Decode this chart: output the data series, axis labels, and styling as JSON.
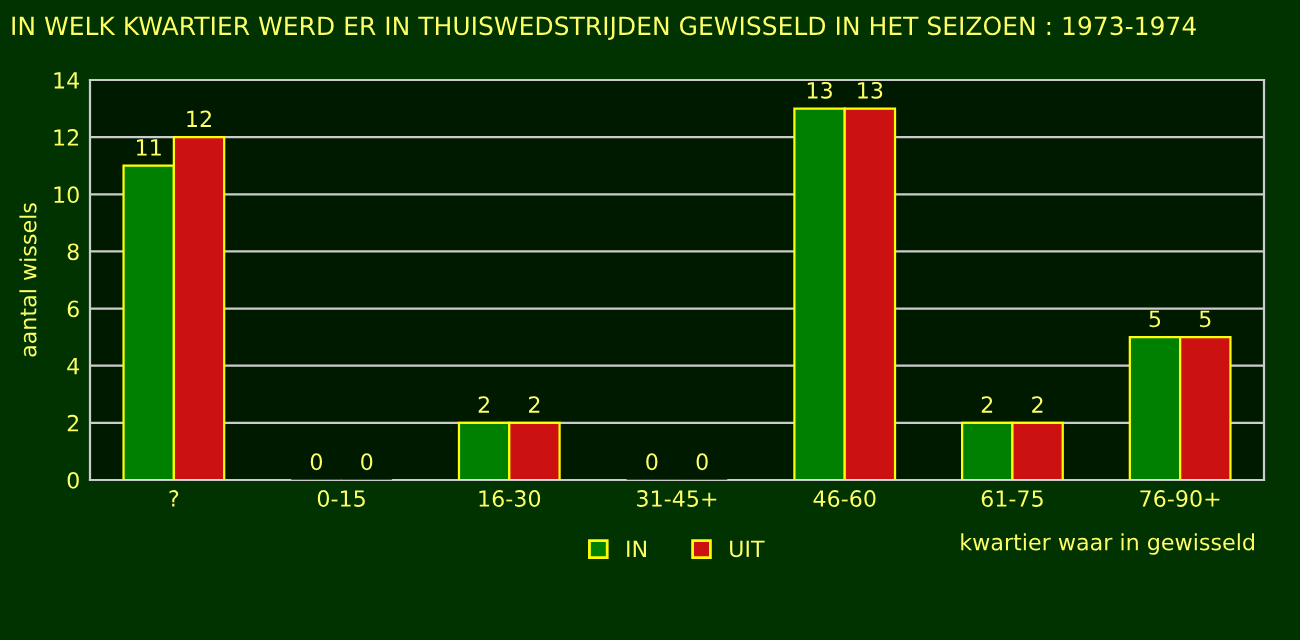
{
  "chart_data": {
    "type": "bar",
    "title": "IN WELK KWARTIER WERD ER IN THUISWEDSTRIJDEN GEWISSELD IN HET SEIZOEN : 1973-1974",
    "xlabel": "kwartier waar in gewisseld",
    "ylabel": "aantal wissels",
    "categories": [
      "?",
      "0-15",
      "16-30",
      "31-45+",
      "46-60",
      "61-75",
      "76-90+"
    ],
    "series": [
      {
        "name": "IN",
        "color": "#008000",
        "values": [
          11,
          0,
          2,
          0,
          13,
          2,
          5
        ]
      },
      {
        "name": "UIT",
        "color": "#cc1111",
        "values": [
          12,
          0,
          2,
          0,
          13,
          2,
          5
        ]
      }
    ],
    "ylim": [
      0,
      14
    ],
    "yticks": [
      0,
      2,
      4,
      6,
      8,
      10,
      12,
      14
    ],
    "grid": "y",
    "legend": "bottom",
    "data_labels": true
  }
}
